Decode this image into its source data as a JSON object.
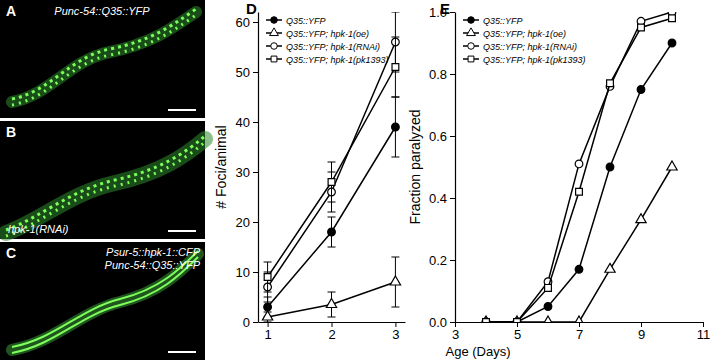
{
  "panels": [
    {
      "label": "A",
      "captions": [
        "Punc-54::Q35::YFP"
      ]
    },
    {
      "label": "B",
      "captions": [
        "hpk-1(RNAi)"
      ]
    },
    {
      "label": "C",
      "captions": [
        "Psur-5::hpk-1::CFP",
        "Punc-54::Q35::YFP"
      ]
    }
  ],
  "figure": {
    "xlabel": "Age (Days)"
  },
  "chart_data": [
    {
      "type": "line",
      "title": "D",
      "ylabel": "# Foci/animal",
      "x": [
        1,
        2,
        3
      ],
      "xlim": [
        0.85,
        3.15
      ],
      "xticks": [
        1,
        2,
        3
      ],
      "ylim": [
        0,
        62
      ],
      "yticks": [
        0,
        10,
        20,
        30,
        40,
        50,
        60
      ],
      "legend": "upper left",
      "series": [
        {
          "name": "Q35::YFP",
          "color": "#000000",
          "marker": "circle",
          "values": [
            3,
            18,
            39
          ],
          "errors": [
            2,
            3,
            6
          ]
        },
        {
          "name": "Q35::YFP; hpk-1(oe)",
          "color": "#000000",
          "marker": "triangle-open",
          "values": [
            1,
            3.5,
            8
          ],
          "errors": [
            1,
            2.5,
            5
          ]
        },
        {
          "name": "Q35::YFP; hpk-1(RNAi)",
          "color": "#000000",
          "marker": "circle-open",
          "values": [
            7,
            26,
            56
          ],
          "errors": [
            3,
            4,
            6
          ]
        },
        {
          "name": "Q35::YFP; hpk-1(pk1393)",
          "color": "#000000",
          "marker": "square-open",
          "values": [
            9,
            28,
            51
          ],
          "errors": [
            3,
            4,
            6
          ]
        }
      ]
    },
    {
      "type": "line",
      "title": "E",
      "ylabel": "Fraction paralyzed",
      "x": [
        4,
        5,
        6,
        7,
        8,
        9,
        10
      ],
      "xlim": [
        3,
        11
      ],
      "xticks": [
        3,
        5,
        7,
        9,
        11
      ],
      "ylim": [
        0,
        1
      ],
      "yticks": [
        {
          "value": 0,
          "label": "0.0"
        },
        {
          "value": 0.2,
          "label": "0.2"
        },
        {
          "value": 0.4,
          "label": "0.4"
        },
        {
          "value": 0.6,
          "label": "0.6"
        },
        {
          "value": 0.8,
          "label": "0.8"
        },
        {
          "value": 1,
          "label": "1.0"
        }
      ],
      "legend": "upper left",
      "series": [
        {
          "name": "Q35::YFP",
          "color": "#000000",
          "marker": "circle",
          "values": [
            0,
            0,
            0.05,
            0.17,
            0.5,
            0.75,
            0.9
          ]
        },
        {
          "name": "Q35::YFP; hpk-1(oe)",
          "color": "#000000",
          "marker": "triangle-open",
          "values": [
            0,
            0,
            0,
            0,
            0.17,
            0.33,
            0.5
          ]
        },
        {
          "name": "Q35::YFP; hpk-1(RNAi)",
          "color": "#000000",
          "marker": "circle-open",
          "values": [
            0,
            0,
            0.13,
            0.51,
            0.76,
            0.97,
            1
          ]
        },
        {
          "name": "Q35::YFP; hpk-1(pk1393)",
          "color": "#000000",
          "marker": "square-open",
          "values": [
            0,
            0,
            0.11,
            0.42,
            0.77,
            0.95,
            0.98
          ]
        }
      ]
    }
  ]
}
